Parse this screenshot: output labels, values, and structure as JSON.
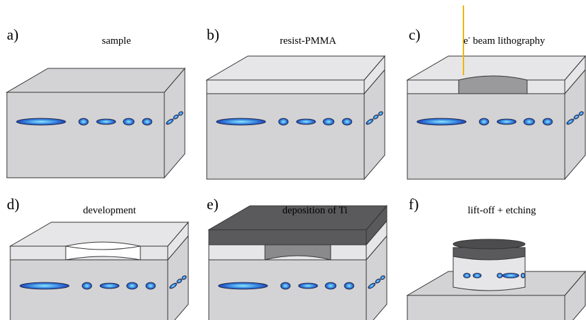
{
  "panels": [
    {
      "label": "a)",
      "title": "sample"
    },
    {
      "label": "b)",
      "title": "resist-PMMA"
    },
    {
      "label": "c)",
      "title": {
        "prefix": "e",
        "sup": "-",
        "rest": " beam lithography"
      }
    },
    {
      "label": "d)",
      "title": "development"
    },
    {
      "label": "e)",
      "title": "deposition of Ti"
    },
    {
      "label": "f)",
      "title": "lift-off + etching"
    }
  ]
}
